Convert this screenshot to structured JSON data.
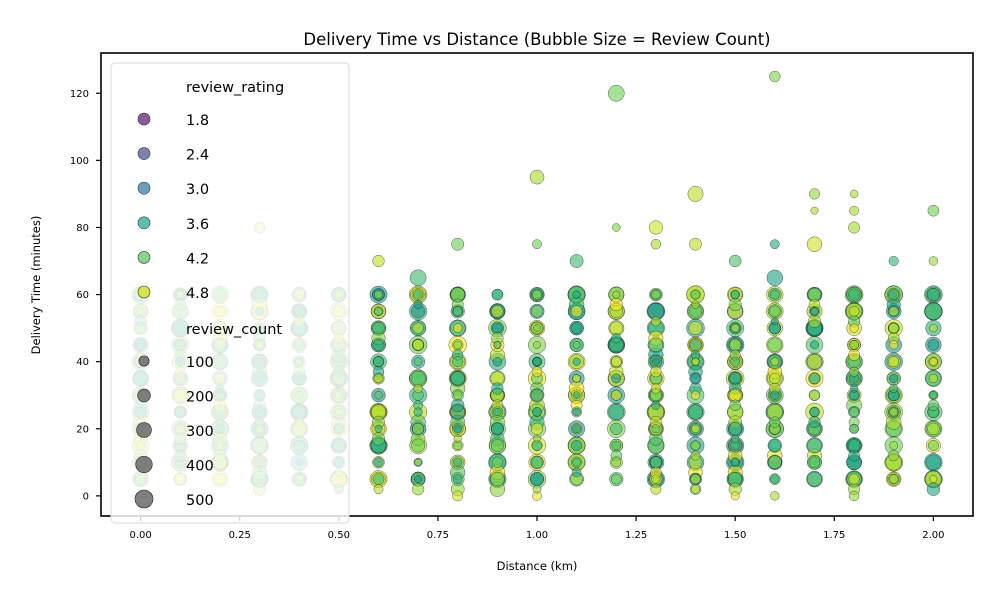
{
  "chart_data": {
    "type": "scatter",
    "title": "Delivery Time vs Distance (Bubble Size = Review Count)",
    "xlabel": "Distance (km)",
    "ylabel": "Delivery Time (minutes)",
    "xlim": [
      -0.1,
      2.1
    ],
    "ylim": [
      -6,
      132
    ],
    "x_ticks": [
      "0.00",
      "0.25",
      "0.50",
      "0.75",
      "1.00",
      "1.25",
      "1.50",
      "1.75",
      "2.00"
    ],
    "x_tick_values": [
      0,
      0.25,
      0.5,
      0.75,
      1.0,
      1.25,
      1.5,
      1.75,
      2.0
    ],
    "y_ticks": [
      "0",
      "20",
      "40",
      "60",
      "80",
      "100",
      "120"
    ],
    "y_tick_values": [
      0,
      20,
      40,
      60,
      80,
      100,
      120
    ],
    "grid": false,
    "legend_position": "upper-left",
    "legend": {
      "hue_title": "review_rating",
      "hue_entries": [
        {
          "label": "1.8",
          "color": "#8a5a9c"
        },
        {
          "label": "2.4",
          "color": "#7c82b0"
        },
        {
          "label": "3.0",
          "color": "#6f9fbf"
        },
        {
          "label": "3.6",
          "color": "#5fbfae"
        },
        {
          "label": "4.2",
          "color": "#86d68a"
        },
        {
          "label": "4.8",
          "color": "#d7e34a"
        }
      ],
      "size_title": "review_count",
      "size_entries": [
        {
          "label": "100",
          "value": 100
        },
        {
          "label": "200",
          "value": 200
        },
        {
          "label": "300",
          "value": 300
        },
        {
          "label": "400",
          "value": 400
        },
        {
          "label": "500",
          "value": 500
        }
      ]
    },
    "color_scale": "viridis, review_rating 1.8 to 5.0",
    "x_levels": [
      0.0,
      0.1,
      0.2,
      0.3,
      0.4,
      0.5,
      0.6,
      0.7,
      0.8,
      0.9,
      1.0,
      1.1,
      1.2,
      1.3,
      1.4,
      1.5,
      1.6,
      1.7,
      1.8,
      1.9,
      2.0
    ],
    "points_note": "Thousands of points per distance level; main mass 5–60 min at every level. Explicit outliers listed below (x, y, review_rating, review_count).",
    "outliers": [
      [
        1.6,
        125,
        4.4,
        120
      ],
      [
        1.2,
        120,
        4.3,
        380
      ],
      [
        1.0,
        95,
        4.6,
        260
      ],
      [
        1.4,
        90,
        4.7,
        330
      ],
      [
        1.7,
        90,
        4.5,
        110
      ],
      [
        1.8,
        90,
        4.6,
        40
      ],
      [
        2.0,
        85,
        4.3,
        130
      ],
      [
        1.7,
        85,
        4.6,
        30
      ],
      [
        1.8,
        85,
        4.6,
        70
      ],
      [
        1.2,
        80,
        4.4,
        40
      ],
      [
        1.3,
        80,
        4.8,
        240
      ],
      [
        1.8,
        80,
        4.6,
        140
      ],
      [
        0.3,
        80,
        4.7,
        120
      ],
      [
        0.8,
        75,
        4.3,
        180
      ],
      [
        1.0,
        75,
        4.3,
        70
      ],
      [
        1.3,
        75,
        4.6,
        90
      ],
      [
        1.4,
        75,
        4.7,
        170
      ],
      [
        1.6,
        75,
        3.7,
        70
      ],
      [
        1.7,
        75,
        4.8,
        300
      ],
      [
        0.6,
        70,
        4.7,
        150
      ],
      [
        1.1,
        70,
        4.0,
        220
      ],
      [
        1.5,
        70,
        4.1,
        160
      ],
      [
        1.9,
        70,
        3.9,
        80
      ],
      [
        2.0,
        70,
        4.5,
        60
      ],
      [
        0.7,
        65,
        4.0,
        380
      ],
      [
        1.6,
        65,
        3.6,
        360
      ],
      [
        0.8,
        0,
        4.8,
        100
      ],
      [
        1.0,
        0,
        4.9,
        70
      ],
      [
        1.4,
        2,
        4.8,
        50
      ],
      [
        1.5,
        0,
        4.9,
        50
      ],
      [
        1.6,
        0,
        4.6,
        60
      ],
      [
        1.8,
        0,
        4.5,
        90
      ]
    ]
  }
}
